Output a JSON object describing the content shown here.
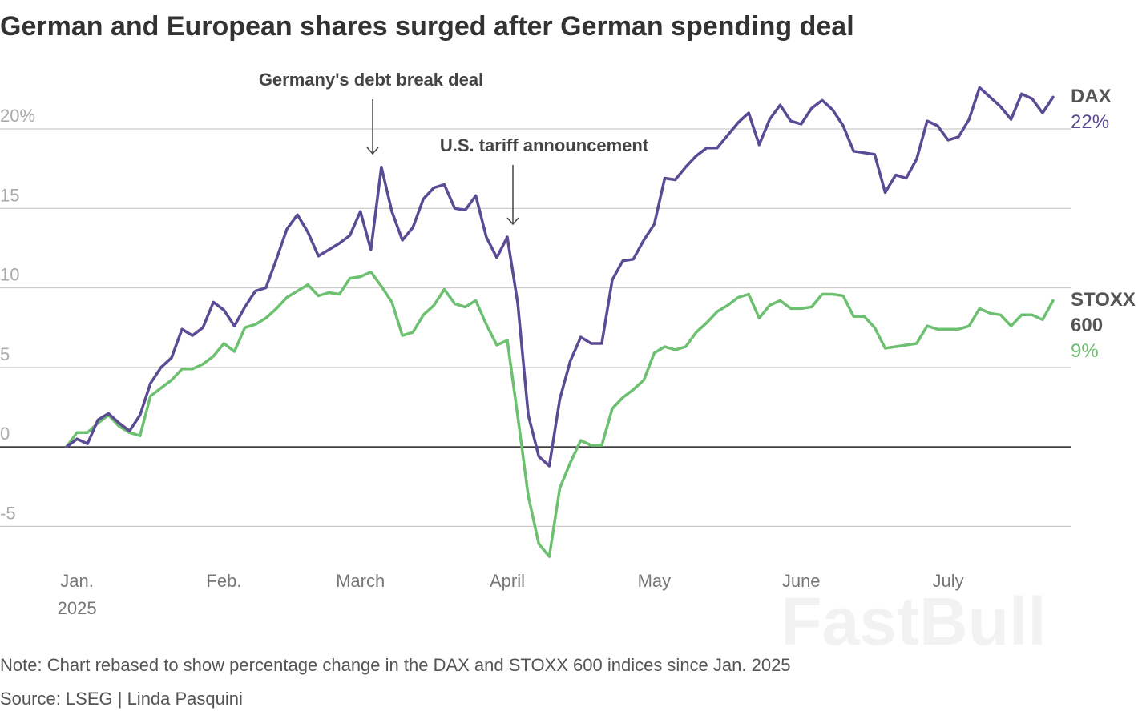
{
  "chart_data": {
    "type": "line",
    "title": "German and European shares surged after German spending deal",
    "annotations": [
      "Germany's debt break deal",
      "U.S. tariff announcement"
    ],
    "note": "Note: Chart rebased to show percentage change in the DAX and STOXX 600 indices since Jan. 2025",
    "source": "Source: LSEG | Linda Pasquini",
    "watermark": "FastBull",
    "year_label": "2025",
    "categories": [
      null,
      "Jan.",
      null,
      null,
      null,
      null,
      null,
      null,
      null,
      null,
      null,
      null,
      null,
      null,
      null,
      "Feb.",
      null,
      null,
      null,
      null,
      null,
      null,
      null,
      null,
      null,
      null,
      null,
      null,
      "March",
      null,
      null,
      null,
      null,
      null,
      null,
      null,
      null,
      null,
      null,
      null,
      null,
      null,
      "April",
      null,
      null,
      null,
      null,
      null,
      null,
      null,
      null,
      null,
      null,
      null,
      null,
      null,
      "May",
      null,
      null,
      null,
      null,
      null,
      null,
      null,
      null,
      null,
      null,
      null,
      null,
      null,
      "June",
      null,
      null,
      null,
      null,
      null,
      null,
      null,
      null,
      null,
      null,
      null,
      null,
      null,
      "July",
      null,
      null,
      null,
      null,
      null,
      null,
      null,
      null,
      null,
      null
    ],
    "series": [
      {
        "name": "STOXX 600",
        "color": "#6cc070",
        "end_label": "9%",
        "values": [
          0,
          0.9,
          0.9,
          1.5,
          2.0,
          1.3,
          0.9,
          0.7,
          3.2,
          3.7,
          4.2,
          4.9,
          4.9,
          5.2,
          5.7,
          6.5,
          6.0,
          7.5,
          7.7,
          8.1,
          8.7,
          9.4,
          9.8,
          10.2,
          9.5,
          9.7,
          9.6,
          10.6,
          10.7,
          11.0,
          10.1,
          9.1,
          7.0,
          7.2,
          8.3,
          8.9,
          9.9,
          9.0,
          8.8,
          9.2,
          7.7,
          6.4,
          6.7,
          1.9,
          -3.1,
          -6.1,
          -6.9,
          -2.6,
          -1.0,
          0.4,
          0.1,
          0.1,
          2.4,
          3.1,
          3.6,
          4.2,
          5.9,
          6.3,
          6.1,
          6.3,
          7.2,
          7.8,
          8.5,
          8.9,
          9.4,
          9.6,
          8.1,
          8.9,
          9.2,
          8.7,
          8.7,
          8.8,
          9.6,
          9.6,
          9.5,
          8.2,
          8.2,
          7.5,
          6.2,
          6.3,
          6.4,
          6.5,
          7.6,
          7.4,
          7.4,
          7.4,
          7.6,
          8.7,
          8.4,
          8.3,
          7.6,
          8.3,
          8.3,
          8.0,
          9.2
        ]
      },
      {
        "name": "DAX",
        "color": "#5b4a94",
        "end_label": "22%",
        "values": [
          0,
          0.5,
          0.2,
          1.7,
          2.1,
          1.5,
          1.0,
          2.0,
          4.0,
          5.0,
          5.6,
          7.4,
          7.0,
          7.5,
          9.1,
          8.6,
          7.6,
          8.8,
          9.8,
          10.0,
          11.8,
          13.7,
          14.6,
          13.5,
          12.0,
          12.4,
          12.8,
          13.3,
          14.8,
          12.4,
          17.6,
          14.8,
          13.0,
          13.8,
          15.6,
          16.3,
          16.5,
          15.0,
          14.9,
          15.8,
          13.2,
          11.9,
          13.2,
          9.0,
          2.0,
          -0.6,
          -1.2,
          3.0,
          5.4,
          6.9,
          6.5,
          6.5,
          10.5,
          11.7,
          11.8,
          13.0,
          14.0,
          16.9,
          16.8,
          17.6,
          18.3,
          18.8,
          18.8,
          19.6,
          20.4,
          21.0,
          19.0,
          20.6,
          21.5,
          20.5,
          20.3,
          21.3,
          21.8,
          21.2,
          20.2,
          18.6,
          18.5,
          18.4,
          16.0,
          17.1,
          16.9,
          18.1,
          20.5,
          20.2,
          19.3,
          19.5,
          20.6,
          22.6,
          22.0,
          21.4,
          20.6,
          22.2,
          21.9,
          21.0,
          22.0
        ]
      }
    ],
    "ylim": [
      -7.5,
      23.5
    ],
    "yticks": [
      -5,
      0,
      5,
      10,
      15,
      {
        "value": 20,
        "label": "20%"
      }
    ],
    "grid": true
  }
}
